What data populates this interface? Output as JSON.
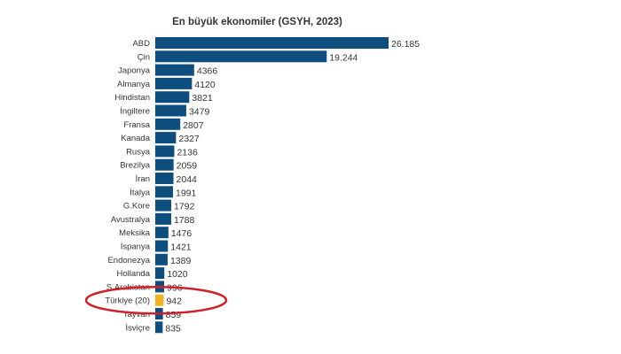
{
  "chart_data": {
    "type": "bar",
    "orientation": "horizontal",
    "title": "En büyük ekonomiler (GSYH, 2023)",
    "xlabel": "",
    "ylabel": "",
    "xlim": [
      0,
      26185
    ],
    "grid": false,
    "legend": "none",
    "categories": [
      "ABD",
      "Çin",
      "Japonya",
      "Almanya",
      "Hindistan",
      "İngiltere",
      "Fransa",
      "Kanada",
      "Rusya",
      "Brezilya",
      "İran",
      "İtalya",
      "G.Kore",
      "Avustralya",
      "Meksika",
      "İspanya",
      "Endonezya",
      "Hollanda",
      "S.Arabistan",
      "Türkiye (20)",
      "Tayvan",
      "İsviçre"
    ],
    "value_labels": [
      "26.185",
      "19.244",
      "4366",
      "4120",
      "3821",
      "3479",
      "2807",
      "2327",
      "2136",
      "2059",
      "2044",
      "1991",
      "1792",
      "1788",
      "1476",
      "1421",
      "1389",
      "1020",
      "996",
      "942",
      "859",
      "835"
    ],
    "values": [
      26185,
      19244,
      4366,
      4120,
      3821,
      3479,
      2807,
      2327,
      2136,
      2059,
      2044,
      1991,
      1792,
      1788,
      1476,
      1421,
      1389,
      1020,
      996,
      942,
      859,
      835
    ],
    "highlight_category": "Türkiye (20)",
    "colors": {
      "bar": "#0d4e7f",
      "highlight": "#f0b323",
      "annotation": "#d0202a"
    }
  }
}
